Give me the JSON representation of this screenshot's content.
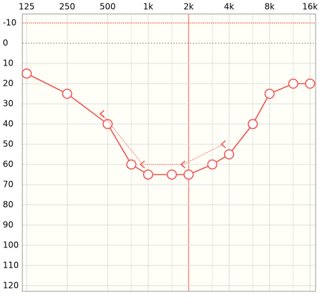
{
  "chart_data": {
    "type": "audiogram",
    "xscale": "log",
    "xlim": [
      116,
      17600
    ],
    "xticks": [
      125,
      250,
      500,
      {
        "value": 1000,
        "label": "1k"
      },
      {
        "value": 2000,
        "label": "2k"
      },
      {
        "value": 4000,
        "label": "4k"
      },
      {
        "value": 8000,
        "label": "8k"
      },
      {
        "value": 16000,
        "label": "16k"
      }
    ],
    "x_minor_gridlines": [
      750,
      1500,
      3000,
      6000,
      12000
    ],
    "ylim": [
      -14.5,
      122.8
    ],
    "yticks": [
      -10,
      0,
      10,
      20,
      30,
      40,
      50,
      60,
      70,
      80,
      90,
      100,
      110,
      120
    ],
    "inverted_y": true,
    "grid": true,
    "series": [
      {
        "marker": "circle",
        "color": "#f0524c",
        "line": "solid",
        "x": [
          125,
          250,
          500,
          750,
          1000,
          1500,
          2000,
          3000,
          4000,
          6000,
          8000,
          12000,
          16000
        ],
        "values": [
          15,
          25,
          40,
          60,
          65,
          65,
          65,
          60,
          55,
          40,
          25,
          20,
          20
        ]
      },
      {
        "marker": "bracket-left",
        "color": "#f0524c",
        "line": "dotted",
        "x": [
          500,
          1000,
          2000,
          4000
        ],
        "values": [
          35,
          60,
          60,
          50
        ]
      }
    ]
  }
}
